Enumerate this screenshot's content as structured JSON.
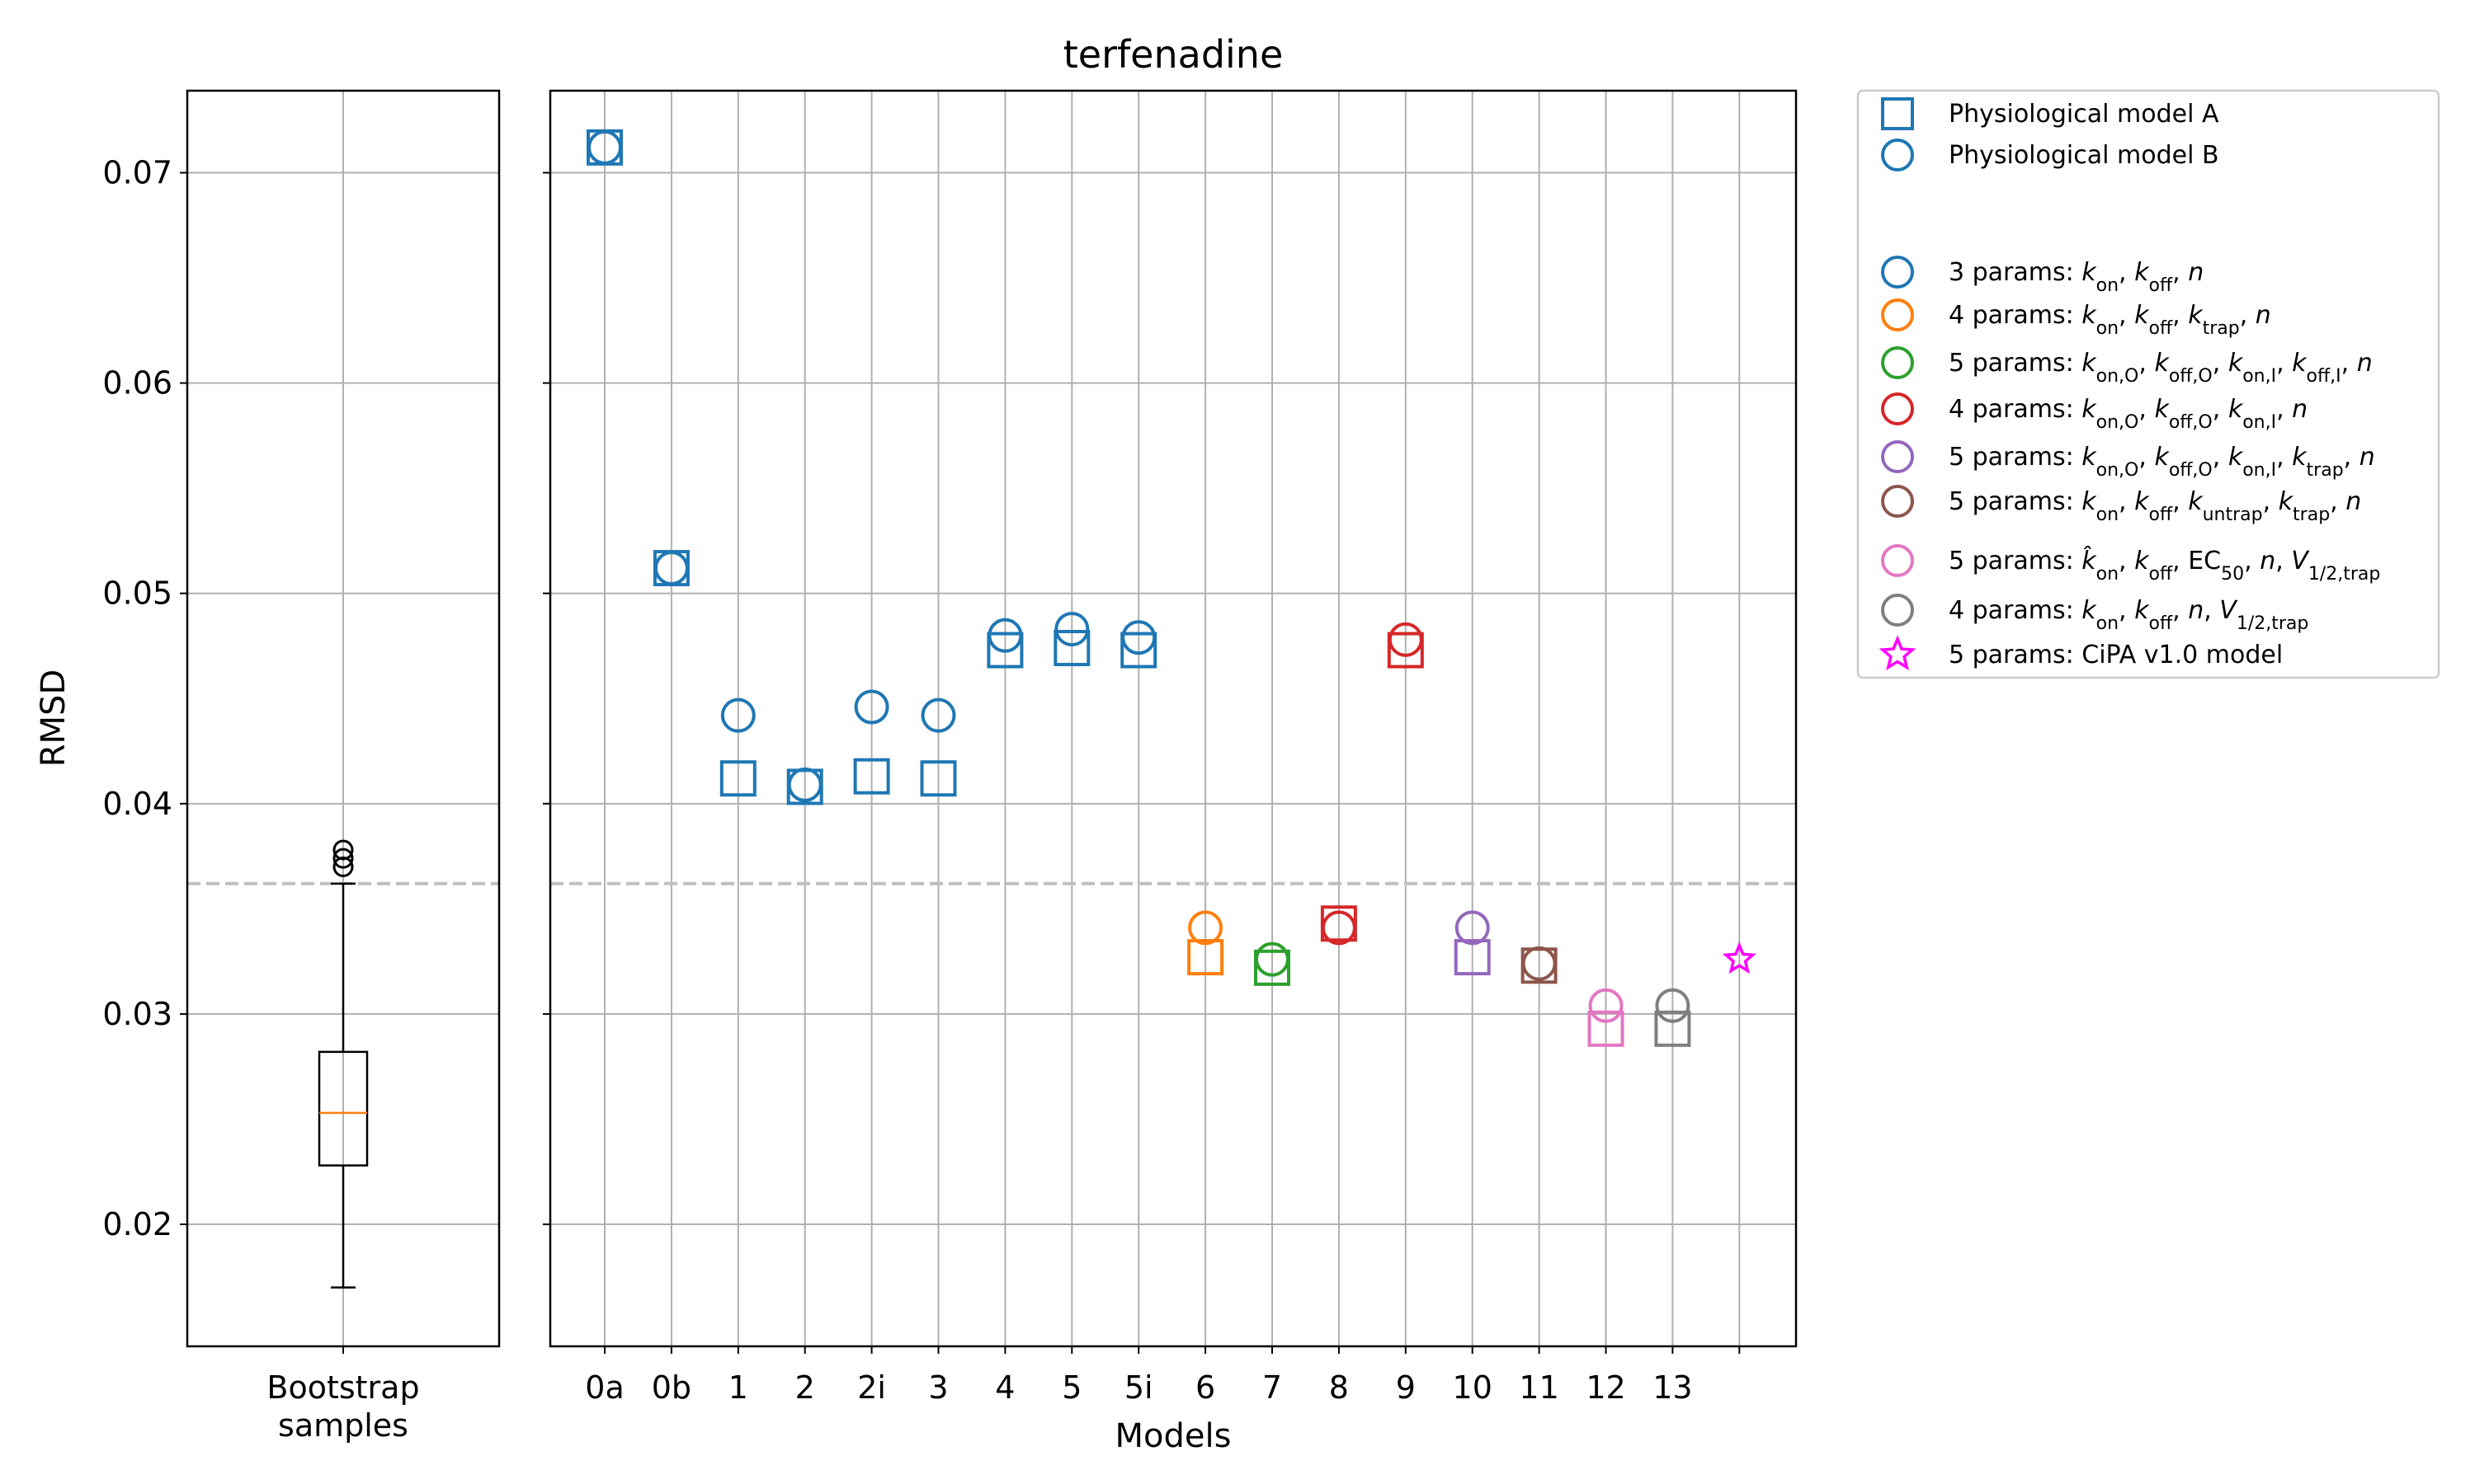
{
  "colors": {
    "blue": "#1f77b4",
    "orange": "#ff7f0e",
    "green": "#2ca02c",
    "red": "#d62728",
    "purple": "#9467bd",
    "brown": "#8c564b",
    "pink": "#e377c2",
    "gray": "#7f7f7f",
    "magenta": "#ff00ff",
    "reference_line": "#bfbfbf",
    "grid": "#b0b0b0"
  },
  "chart_data": [
    {
      "type": "box",
      "xlabel": "Bootstrap samples",
      "ylabel": "RMSD",
      "ylim": [
        0.0142,
        0.0739
      ],
      "yticks": [
        "0.02",
        "0.03",
        "0.04",
        "0.05",
        "0.06",
        "0.07"
      ],
      "grid": true,
      "box": {
        "whisker_low": 0.017,
        "q1": 0.0228,
        "median": 0.0253,
        "q3": 0.0282,
        "whisker_high": 0.0362,
        "outliers": [
          0.037,
          0.0374,
          0.0378
        ]
      },
      "reference_line": 0.0362
    },
    {
      "type": "scatter",
      "title": "terfenadine",
      "xlabel": "Models",
      "ylim": [
        0.0142,
        0.0739
      ],
      "categories": [
        "0a",
        "0b",
        "1",
        "2",
        "2i",
        "3",
        "4",
        "5",
        "5i",
        "6",
        "7",
        "8",
        "9",
        "10",
        "11",
        "12",
        "13",
        ""
      ],
      "grid": true,
      "reference_line": 0.0362,
      "points": [
        {
          "x": "0a",
          "model_A": 0.0712,
          "model_B": 0.0712,
          "color_key": "blue"
        },
        {
          "x": "0b",
          "model_A": 0.0512,
          "model_B": 0.0512,
          "color_key": "blue"
        },
        {
          "x": "1",
          "model_A": 0.0412,
          "model_B": 0.0442,
          "color_key": "blue"
        },
        {
          "x": "2",
          "model_A": 0.0408,
          "model_B": 0.0409,
          "color_key": "blue"
        },
        {
          "x": "2i",
          "model_A": 0.0413,
          "model_B": 0.0446,
          "color_key": "blue"
        },
        {
          "x": "3",
          "model_A": 0.0412,
          "model_B": 0.0442,
          "color_key": "blue"
        },
        {
          "x": "4",
          "model_A": 0.0473,
          "model_B": 0.048,
          "color_key": "blue"
        },
        {
          "x": "5",
          "model_A": 0.0474,
          "model_B": 0.0483,
          "color_key": "blue"
        },
        {
          "x": "5i",
          "model_A": 0.0473,
          "model_B": 0.0479,
          "color_key": "blue"
        },
        {
          "x": "6",
          "model_A": 0.0327,
          "model_B": 0.0341,
          "color_key": "orange"
        },
        {
          "x": "7",
          "model_A": 0.0322,
          "model_B": 0.0326,
          "color_key": "green"
        },
        {
          "x": "8",
          "model_A": 0.0343,
          "model_B": 0.0341,
          "color_key": "red"
        },
        {
          "x": "9",
          "model_A": 0.0473,
          "model_B": 0.0478,
          "color_key": "red"
        },
        {
          "x": "10",
          "model_A": 0.0327,
          "model_B": 0.0341,
          "color_key": "purple"
        },
        {
          "x": "11",
          "model_A": 0.0323,
          "model_B": 0.0324,
          "color_key": "brown"
        },
        {
          "x": "12",
          "model_A": 0.0293,
          "model_B": 0.0304,
          "color_key": "pink"
        },
        {
          "x": "13",
          "model_A": 0.0293,
          "model_B": 0.0304,
          "color_key": "gray"
        }
      ],
      "cipa_point": {
        "x": "",
        "y": 0.0326,
        "color_key": "magenta"
      },
      "legend": {
        "placement": "outside-right-top",
        "entries": [
          {
            "marker": "square",
            "color_key": "blue",
            "text": "Physiological model A"
          },
          {
            "marker": "circle",
            "color_key": "blue",
            "text": "Physiological model B"
          },
          {
            "marker": "none",
            "text": ""
          },
          {
            "marker": "circle",
            "color_key": "blue",
            "text": "3 params: kon, koff, n",
            "markup": "3 params: <i>k</i><tspan baseline-shift='sub' font-size='22'>on</tspan>, <i>k</i><tspan baseline-shift='sub' font-size='22'>off</tspan>, <i>n</i>"
          },
          {
            "marker": "circle",
            "color_key": "orange",
            "text": "4 params: kon, koff, ktrap, n",
            "markup": "4 params: <i>k</i><tspan baseline-shift='sub' font-size='22'>on</tspan>, <i>k</i><tspan baseline-shift='sub' font-size='22'>off</tspan>, <i>k</i><tspan baseline-shift='sub' font-size='22'>trap</tspan>, <i>n</i>"
          },
          {
            "marker": "circle",
            "color_key": "green",
            "text": "5 params: kon,O, koff,O, kon,I, koff,I, n",
            "markup": "5 params: <i>k</i><tspan baseline-shift='sub' font-size='22'>on,O</tspan>, <i>k</i><tspan baseline-shift='sub' font-size='22'>off,O</tspan>, <i>k</i><tspan baseline-shift='sub' font-size='22'>on,I</tspan>, <i>k</i><tspan baseline-shift='sub' font-size='22'>off,I</tspan>, <i>n</i>"
          },
          {
            "marker": "circle",
            "color_key": "red",
            "text": "4 params: kon,O, koff,O, kon,I, n",
            "markup": "4 params: <i>k</i><tspan baseline-shift='sub' font-size='22'>on,O</tspan>, <i>k</i><tspan baseline-shift='sub' font-size='22'>off,O</tspan>, <i>k</i><tspan baseline-shift='sub' font-size='22'>on,I</tspan>, <i>n</i>"
          },
          {
            "marker": "circle",
            "color_key": "purple",
            "text": "5 params: kon,O, koff,O, kon,I, ktrap, n",
            "markup": "5 params: <i>k</i><tspan baseline-shift='sub' font-size='22'>on,O</tspan>, <i>k</i><tspan baseline-shift='sub' font-size='22'>off,O</tspan>, <i>k</i><tspan baseline-shift='sub' font-size='22'>on,I</tspan>, <i>k</i><tspan baseline-shift='sub' font-size='22'>trap</tspan>, <i>n</i>"
          },
          {
            "marker": "circle",
            "color_key": "brown",
            "text": "5 params: kon, koff, kuntrap, ktrap, n",
            "markup": "5 params: <i>k</i><tspan baseline-shift='sub' font-size='22'>on</tspan>, <i>k</i><tspan baseline-shift='sub' font-size='22'>off</tspan>, <i>k</i><tspan baseline-shift='sub' font-size='22'>untrap</tspan>, <i>k</i><tspan baseline-shift='sub' font-size='22'>trap</tspan>, <i>n</i>"
          },
          {
            "marker": "circle",
            "color_key": "pink",
            "text": "5 params: k̂on, koff, EC50, n, V1/2,trap",
            "markup": "5 params: <i>k̂</i><tspan baseline-shift='sub' font-size='22'>on</tspan>, <i>k</i><tspan baseline-shift='sub' font-size='22'>off</tspan>, EC<tspan baseline-shift='sub' font-size='22'>50</tspan>, <i>n</i>, <i>V</i><tspan baseline-shift='sub' font-size='22'>1/2,trap</tspan>"
          },
          {
            "marker": "circle",
            "color_key": "gray",
            "text": "4 params: kon, koff, n, V1/2,trap",
            "markup": "4 params: <i>k</i><tspan baseline-shift='sub' font-size='22'>on</tspan>, <i>k</i><tspan baseline-shift='sub' font-size='22'>off</tspan>, <i>n</i>, <i>V</i><tspan baseline-shift='sub' font-size='22'>1/2,trap</tspan>"
          },
          {
            "marker": "star",
            "color_key": "magenta",
            "text": "5 params: CiPA v1.0 model"
          }
        ]
      }
    }
  ]
}
